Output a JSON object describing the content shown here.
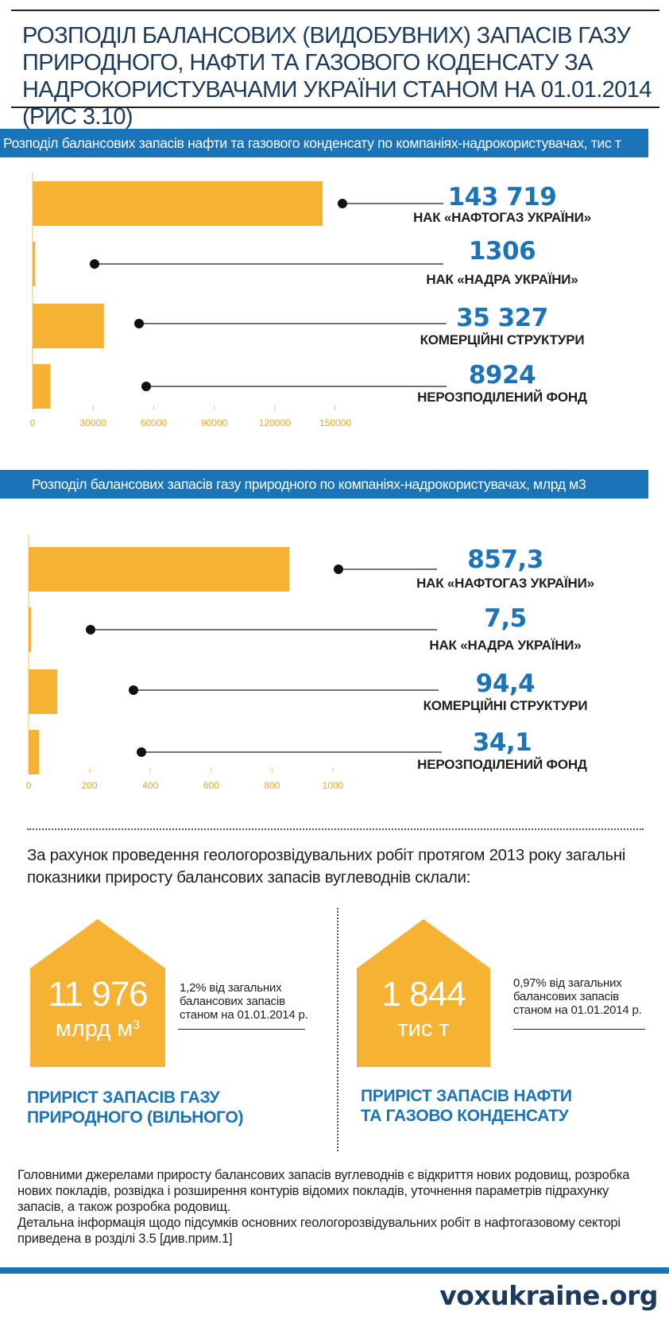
{
  "title": "РОЗПОДІЛ БАЛАНСОВИХ (ВИДОБУВНИХ) ЗАПАСІВ ГАЗУ ПРИРОДНОГО, НАФТИ ТА ГАЗОВОГО КОДЕНСАТУ ЗА НАДРОКОРИСТУВАЧАМИ УКРАЇНИ СТАНОМ НА 01.01.2014 (РИС 3.10)",
  "colors": {
    "accent": "#1b73b8",
    "bar": "#f6b233",
    "title": "#1c3a5c"
  },
  "chart_data": [
    {
      "type": "bar",
      "orientation": "horizontal",
      "title": "Розподіл балансових запасів нафти та газового конденсату по компаніях-надрокористувачах, тис т",
      "categories": [
        "НАК «НАФТОГАЗ УКРАЇНИ»",
        "НАК «НАДРА УКРАЇНИ»",
        "КОМЕРЦІЙНІ СТРУКТУРИ",
        "НЕРОЗПОДІЛЕНИЙ ФОНД"
      ],
      "values": [
        143719,
        1306,
        35327,
        8924
      ],
      "value_labels": [
        "143 719",
        "1306",
        "35 327",
        "8924"
      ],
      "xlim": [
        0,
        150000
      ],
      "ticks": [
        0,
        30000,
        60000,
        90000,
        120000,
        150000
      ],
      "tick_labels": [
        "0",
        "30000",
        "60000",
        "90000",
        "120000",
        "150000"
      ],
      "grid": false
    },
    {
      "type": "bar",
      "orientation": "horizontal",
      "title": "Розподіл балансових запасів газу природного по компаніях-надрокористувачах, млрд м3",
      "categories": [
        "НАК «НАФТОГАЗ УКРАЇНИ»",
        "НАК «НАДРА УКРАЇНИ»",
        "КОМЕРЦІЙНІ СТРУКТУРИ",
        "НЕРОЗПОДІЛЕНИЙ ФОНД"
      ],
      "values": [
        857.3,
        7.5,
        94.4,
        34.1
      ],
      "value_labels": [
        "857,3",
        "7,5",
        "94,4",
        "34,1"
      ],
      "xlim": [
        0,
        1000
      ],
      "ticks": [
        0,
        200,
        400,
        600,
        800,
        1000
      ],
      "tick_labels": [
        "0",
        "200",
        "400",
        "600",
        "800",
        "1000"
      ],
      "grid": false
    }
  ],
  "intro": "За рахунок проведення геологорозвідувальних робіт протягом 2013 року загальні показники приросту балансових запасів вуглеводнів склали:",
  "growth": [
    {
      "number": "11 976",
      "unit": "млрд м",
      "unit_sup": "3",
      "note": "1,2% від загальних балансових запасів станом на 01.01.2014 р.",
      "caption_line1": "ПРИРІСТ ЗАПАСІВ ГАЗУ",
      "caption_line2": "ПРИРОДНОГО (ВІЛЬНОГО)"
    },
    {
      "number": "1 844",
      "unit": "тис т",
      "unit_sup": "",
      "note": "0,97% від загальних балансових запасів станом на 01.01.2014 р.",
      "caption_line1": "ПРИРІСТ ЗАПАСІВ НАФТИ",
      "caption_line2": "ТА ГАЗОВО КОНДЕНСАТУ"
    }
  ],
  "footer": {
    "p1": "Головними джерелами приросту балансових запасів вуглеводнів є відкриття нових родовищ, розробка нових покладів, розвідка і розширення контурів відомих покладів, уточнення параметрів підрахунку запасів, а також розробка родовищ.",
    "p2": "Детальна інформація щодо підсумків основних геологорозвідувальних робіт в нафтогазовому секторі приведена в розділі 3.5 [див.прим.1]"
  },
  "brand": "voxukraine.org"
}
